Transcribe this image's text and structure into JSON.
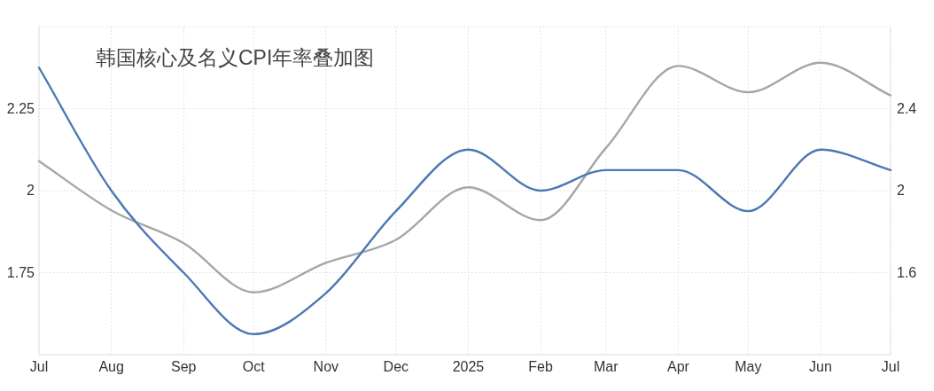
{
  "chart_data": {
    "type": "line",
    "title": "韩国核心及名义CPI年率叠加图",
    "x": [
      "2024-07",
      "2024-08",
      "2024-09",
      "2024-10",
      "2024-11",
      "2024-12",
      "2025-01",
      "2025-02",
      "2025-03",
      "2025-04",
      "2025-05",
      "2025-06",
      "2025-07"
    ],
    "series": [
      {
        "color": "#a6a6a6",
        "values": [
          2.09,
          1.94,
          1.84,
          1.69,
          1.78,
          1.85,
          2.01,
          1.91,
          2.13,
          2.38,
          2.3,
          2.39,
          2.29
        ]
      },
      {
        "color": "#4a78b4",
        "axis": "y2",
        "values": [
          2.6,
          2.0,
          1.6,
          1.3,
          1.5,
          1.9,
          2.2,
          2.0,
          2.1,
          2.1,
          1.9,
          2.2,
          2.1
        ]
      }
    ],
    "xlim": [
      "2024-07",
      "2025-07"
    ],
    "xticks": [
      {
        "value": "2024-07",
        "label": "Jul"
      },
      {
        "value": "2024-08",
        "label": "Aug"
      },
      {
        "value": "2024-09",
        "label": "Sep"
      },
      {
        "value": "2024-10",
        "label": "Oct"
      },
      {
        "value": "2024-11",
        "label": "Nov"
      },
      {
        "value": "2024-12",
        "label": "Dec"
      },
      {
        "value": "2025-01",
        "label": "2025"
      },
      {
        "value": "2025-02",
        "label": "Feb"
      },
      {
        "value": "2025-03",
        "label": "Mar"
      },
      {
        "value": "2025-04",
        "label": "Apr"
      },
      {
        "value": "2025-05",
        "label": "May"
      },
      {
        "value": "2025-06",
        "label": "Jun"
      },
      {
        "value": "2025-07",
        "label": "Jul"
      }
    ],
    "ylim": [
      1.5,
      2.5
    ],
    "yticks": [
      1.75,
      2,
      2.25
    ],
    "y2lim": [
      1.2,
      2.8
    ],
    "y2ticks": [
      1.6,
      2,
      2.4
    ],
    "grid": true,
    "marker": "none",
    "line_style": "solid"
  }
}
